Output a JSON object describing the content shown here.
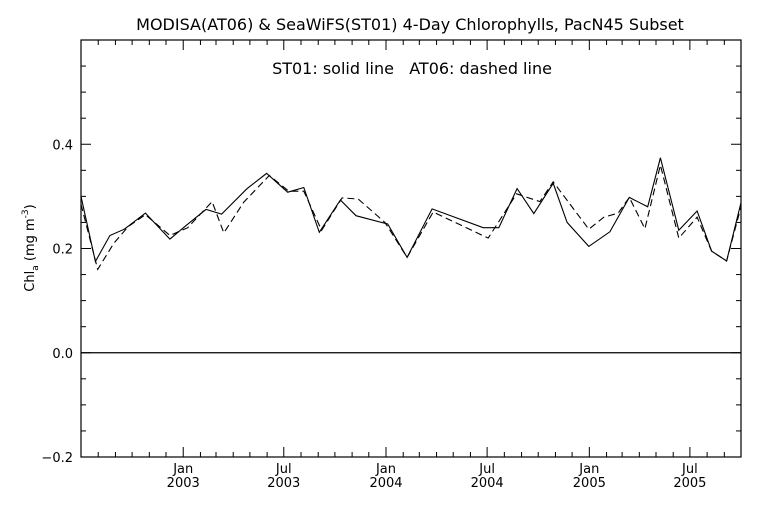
{
  "chart_data": {
    "type": "line",
    "title": "MODISA(AT06) & SeaWiFS(ST01) 4-Day Chlorophylls, PacN45 Subset",
    "annotation": "ST01: solid line   AT06: dashed line",
    "ylabel": {
      "main": "Chl",
      "subscript": "a",
      "unit_prefix": " (mg m",
      "unit_sup": "-3",
      "unit_suffix": ")"
    },
    "ylim": [
      -0.2,
      0.6
    ],
    "xlim": [
      "2002-07-01",
      "2005-10-01"
    ],
    "y_ticks": [
      {
        "value": -0.2,
        "label": "−0.2"
      },
      {
        "value": 0.0,
        "label": "0.0"
      },
      {
        "value": 0.2,
        "label": "0.2"
      },
      {
        "value": 0.4,
        "label": "0.4"
      }
    ],
    "x_ticks": [
      {
        "date": "2003-01-01",
        "month": "Jan",
        "year": "2003"
      },
      {
        "date": "2003-07-01",
        "month": "Jul",
        "year": "2003"
      },
      {
        "date": "2004-01-01",
        "month": "Jan",
        "year": "2004"
      },
      {
        "date": "2004-07-01",
        "month": "Jul",
        "year": "2004"
      },
      {
        "date": "2005-01-01",
        "month": "Jan",
        "year": "2005"
      },
      {
        "date": "2005-07-01",
        "month": "Jul",
        "year": "2005"
      }
    ],
    "reference_line": 0.0,
    "series": [
      {
        "name": "ST01",
        "style": "solid",
        "color": "#000000",
        "points": [
          [
            "2002-07-01",
            0.3
          ],
          [
            "2002-07-27",
            0.175
          ],
          [
            "2002-08-22",
            0.225
          ],
          [
            "2002-09-17",
            0.237
          ],
          [
            "2002-10-25",
            0.268
          ],
          [
            "2002-12-08",
            0.218
          ],
          [
            "2003-01-06",
            0.244
          ],
          [
            "2003-02-11",
            0.275
          ],
          [
            "2003-03-11",
            0.266
          ],
          [
            "2003-04-26",
            0.315
          ],
          [
            "2003-05-31",
            0.344
          ],
          [
            "2003-07-08",
            0.308
          ],
          [
            "2003-08-06",
            0.317
          ],
          [
            "2003-09-03",
            0.231
          ],
          [
            "2003-10-11",
            0.293
          ],
          [
            "2003-11-08",
            0.263
          ],
          [
            "2004-01-04",
            0.247
          ],
          [
            "2004-02-08",
            0.183
          ],
          [
            "2004-03-24",
            0.276
          ],
          [
            "2004-06-24",
            0.24
          ],
          [
            "2004-07-22",
            0.24
          ],
          [
            "2004-08-24",
            0.315
          ],
          [
            "2004-09-23",
            0.267
          ],
          [
            "2004-10-28",
            0.325
          ],
          [
            "2004-11-22",
            0.25
          ],
          [
            "2004-12-31",
            0.204
          ],
          [
            "2005-02-07",
            0.232
          ],
          [
            "2005-03-14",
            0.298
          ],
          [
            "2005-04-16",
            0.28
          ],
          [
            "2005-05-09",
            0.374
          ],
          [
            "2005-06-11",
            0.235
          ],
          [
            "2005-07-14",
            0.272
          ],
          [
            "2005-08-09",
            0.195
          ],
          [
            "2005-09-05",
            0.176
          ],
          [
            "2005-10-01",
            0.288
          ]
        ]
      },
      {
        "name": "AT06",
        "style": "dashed",
        "color": "#000000",
        "points": [
          [
            "2002-07-01",
            0.285
          ],
          [
            "2002-07-31",
            0.16
          ],
          [
            "2002-08-29",
            0.21
          ],
          [
            "2002-09-24",
            0.242
          ],
          [
            "2002-10-25",
            0.265
          ],
          [
            "2002-12-08",
            0.225
          ],
          [
            "2003-01-09",
            0.24
          ],
          [
            "2003-02-22",
            0.29
          ],
          [
            "2003-03-15",
            0.23
          ],
          [
            "2003-04-20",
            0.289
          ],
          [
            "2003-06-05",
            0.34
          ],
          [
            "2003-07-10",
            0.31
          ],
          [
            "2003-08-06",
            0.31
          ],
          [
            "2003-09-07",
            0.235
          ],
          [
            "2003-10-14",
            0.297
          ],
          [
            "2003-11-12",
            0.295
          ],
          [
            "2003-12-30",
            0.25
          ],
          [
            "2004-02-08",
            0.183
          ],
          [
            "2004-03-26",
            0.27
          ],
          [
            "2004-07-03",
            0.22
          ],
          [
            "2004-08-23",
            0.305
          ],
          [
            "2004-10-04",
            0.29
          ],
          [
            "2004-10-28",
            0.328
          ],
          [
            "2004-12-31",
            0.237
          ],
          [
            "2005-01-27",
            0.26
          ],
          [
            "2005-02-22",
            0.268
          ],
          [
            "2005-03-14",
            0.298
          ],
          [
            "2005-04-11",
            0.238
          ],
          [
            "2005-05-09",
            0.36
          ],
          [
            "2005-06-11",
            0.22
          ],
          [
            "2005-07-14",
            0.26
          ],
          [
            "2005-08-09",
            0.195
          ],
          [
            "2005-09-05",
            0.176
          ],
          [
            "2005-10-01",
            0.28
          ]
        ]
      }
    ]
  }
}
